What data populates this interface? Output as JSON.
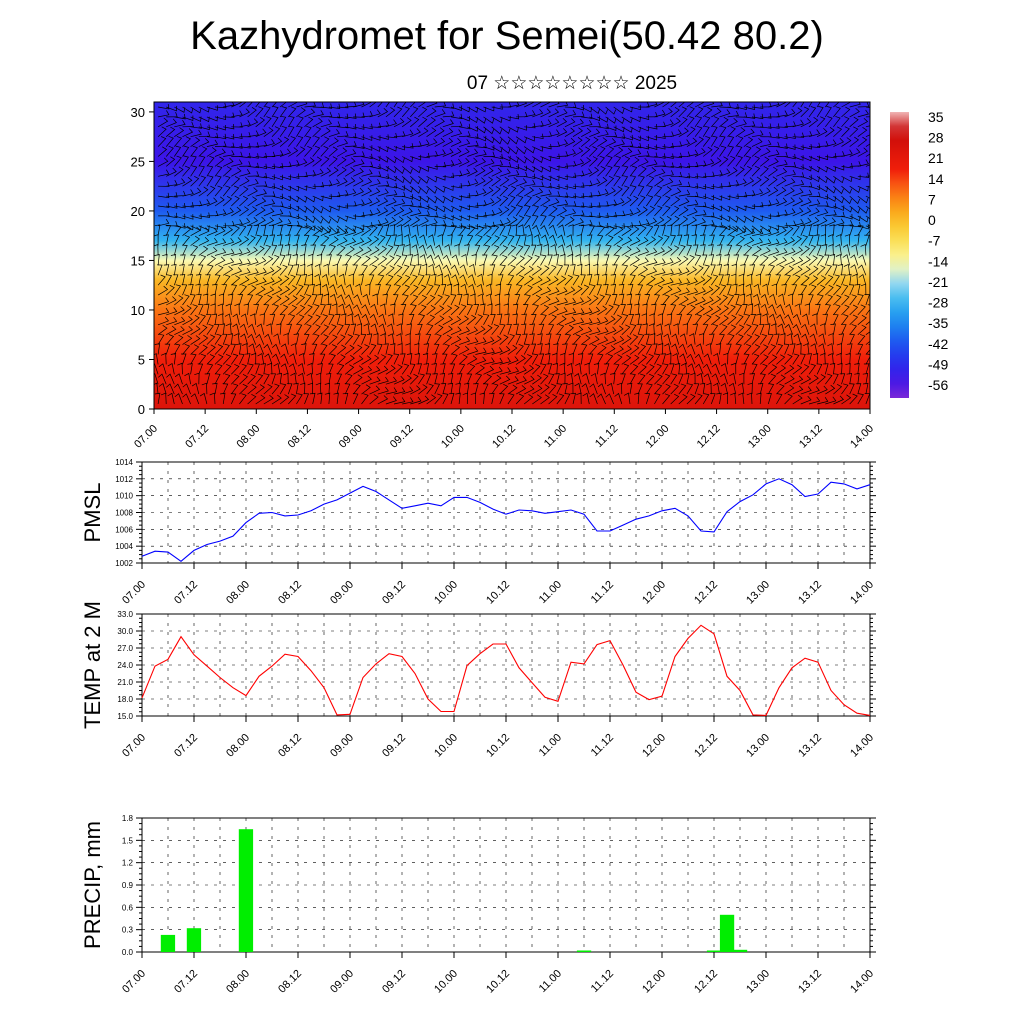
{
  "title": "Kazhydromet for Semei(50.42 80.2)",
  "subtitle": "07 ☆☆☆☆☆☆☆☆ 2025",
  "colors": {
    "pressure_line": "#0000ff",
    "temperature_line": "#ff0000",
    "precip_bar": "#00ee00",
    "barb": "#000000",
    "grid": "#000000"
  },
  "chart_data": [
    {
      "type": "heatmap",
      "name": "cross-section",
      "title": "",
      "xlabel": "",
      "ylabel": "",
      "x_ticks": [
        "07.00",
        "07.12",
        "08.00",
        "08.12",
        "09.00",
        "09.12",
        "10.00",
        "10.12",
        "11.00",
        "11.12",
        "12.00",
        "12.12",
        "13.00",
        "13.12",
        "14.00"
      ],
      "y_ticks": [
        "0",
        "5",
        "10",
        "15",
        "20",
        "25",
        "30"
      ],
      "ylim": [
        0,
        31
      ],
      "colorbar_labels": [
        "35",
        "28",
        "21",
        "14",
        "7",
        "0",
        "-7",
        "-14",
        "-21",
        "-28",
        "-35",
        "-42",
        "-49",
        "-56"
      ],
      "colorbar_range": [
        -63,
        42
      ],
      "temperature_profile": {
        "levels": [
          0,
          5,
          10,
          13,
          15,
          17,
          20,
          25,
          31
        ],
        "values": [
          28,
          21,
          12,
          3,
          -14,
          -28,
          -42,
          -56,
          -52
        ]
      },
      "wind_barbs": true
    },
    {
      "type": "line",
      "name": "PMSL",
      "title": "",
      "ylabel": "PMSL",
      "ylim": [
        1002,
        1014
      ],
      "y_ticks": [
        "1002",
        "1004",
        "1006",
        "1008",
        "1010",
        "1012",
        "1014"
      ],
      "x_ticks": [
        "07.00",
        "07.12",
        "08.00",
        "08.12",
        "09.00",
        "09.12",
        "10.00",
        "10.12",
        "11.00",
        "11.12",
        "12.00",
        "12.12",
        "13.00",
        "13.12",
        "14.00"
      ],
      "xlim": [
        0,
        168
      ],
      "x": [
        0,
        3,
        6,
        9,
        12,
        15,
        18,
        21,
        24,
        27,
        30,
        33,
        36,
        39,
        42,
        45,
        48,
        51,
        54,
        57,
        60,
        63,
        66,
        69,
        72,
        75,
        78,
        81,
        84,
        87,
        90,
        93,
        96,
        99,
        102,
        105,
        108,
        111,
        114,
        117,
        120,
        123,
        126,
        129,
        132,
        135,
        138,
        141,
        144,
        147,
        150,
        153,
        156,
        159,
        162,
        165,
        168
      ],
      "values": [
        1002.8,
        1003.4,
        1003.3,
        1002.2,
        1003.5,
        1004.2,
        1004.6,
        1005.2,
        1006.8,
        1007.9,
        1008.0,
        1007.6,
        1007.7,
        1008.2,
        1009.0,
        1009.5,
        1010.3,
        1011.1,
        1010.5,
        1009.5,
        1008.5,
        1008.8,
        1009.1,
        1008.8,
        1009.8,
        1009.8,
        1009.2,
        1008.4,
        1007.8,
        1008.3,
        1008.2,
        1007.9,
        1008.1,
        1008.3,
        1007.8,
        1005.8,
        1005.8,
        1006.5,
        1007.2,
        1007.6,
        1008.2,
        1008.5,
        1007.6,
        1005.8,
        1005.7,
        1008.1,
        1009.3,
        1010.1,
        1011.4,
        1012.0,
        1011.3,
        1009.9,
        1010.2,
        1011.6,
        1011.4,
        1010.8,
        1011.3
      ]
    },
    {
      "type": "line",
      "name": "TEMP at 2 M",
      "title": "",
      "ylabel": "TEMP at 2 M",
      "ylim": [
        15,
        33
      ],
      "y_ticks": [
        "15.0",
        "18.0",
        "21.0",
        "24.0",
        "27.0",
        "30.0",
        "33.0"
      ],
      "x_ticks": [
        "07.00",
        "07.12",
        "08.00",
        "08.12",
        "09.00",
        "09.12",
        "10.00",
        "10.12",
        "11.00",
        "11.12",
        "12.00",
        "12.12",
        "13.00",
        "13.12",
        "14.00"
      ],
      "xlim": [
        0,
        168
      ],
      "x": [
        0,
        3,
        6,
        9,
        12,
        15,
        18,
        21,
        24,
        27,
        30,
        33,
        36,
        39,
        42,
        45,
        48,
        51,
        54,
        57,
        60,
        63,
        66,
        69,
        72,
        75,
        78,
        81,
        84,
        87,
        90,
        93,
        96,
        99,
        102,
        105,
        108,
        111,
        114,
        117,
        120,
        123,
        126,
        129,
        132,
        135,
        138,
        141,
        144,
        147,
        150,
        153,
        156,
        159,
        162,
        165,
        168
      ],
      "values": [
        18.2,
        23.8,
        25.0,
        29.0,
        25.8,
        23.8,
        21.8,
        20.0,
        18.6,
        22.0,
        23.8,
        25.9,
        25.5,
        23.0,
        20.0,
        15.2,
        15.3,
        21.8,
        24.2,
        26.0,
        25.5,
        22.5,
        18.0,
        15.8,
        15.8,
        23.9,
        26.0,
        27.7,
        27.7,
        23.5,
        20.9,
        18.3,
        17.6,
        24.5,
        24.2,
        27.6,
        28.3,
        24.0,
        19.2,
        17.9,
        18.5,
        25.5,
        28.7,
        31.0,
        29.5,
        22.0,
        19.5,
        15.2,
        15.1,
        20.0,
        23.5,
        25.2,
        24.5,
        19.5,
        17.0,
        15.5,
        15.1
      ]
    },
    {
      "type": "bar",
      "name": "PRECIP, mm",
      "title": "",
      "ylabel": "PRECIP, mm",
      "ylim": [
        0,
        1.8
      ],
      "y_ticks": [
        "0.0",
        "0.3",
        "0.6",
        "0.9",
        "1.2",
        "1.5",
        "1.8"
      ],
      "x_ticks": [
        "07.00",
        "07.12",
        "08.00",
        "08.12",
        "09.00",
        "09.12",
        "10.00",
        "10.12",
        "11.00",
        "11.12",
        "12.00",
        "12.12",
        "13.00",
        "13.12",
        "14.00"
      ],
      "xlim": [
        0,
        168
      ],
      "x": [
        6,
        12,
        24,
        102,
        132,
        135,
        138
      ],
      "values": [
        0.23,
        0.32,
        1.65,
        0.02,
        0.02,
        0.5,
        0.03
      ]
    }
  ]
}
